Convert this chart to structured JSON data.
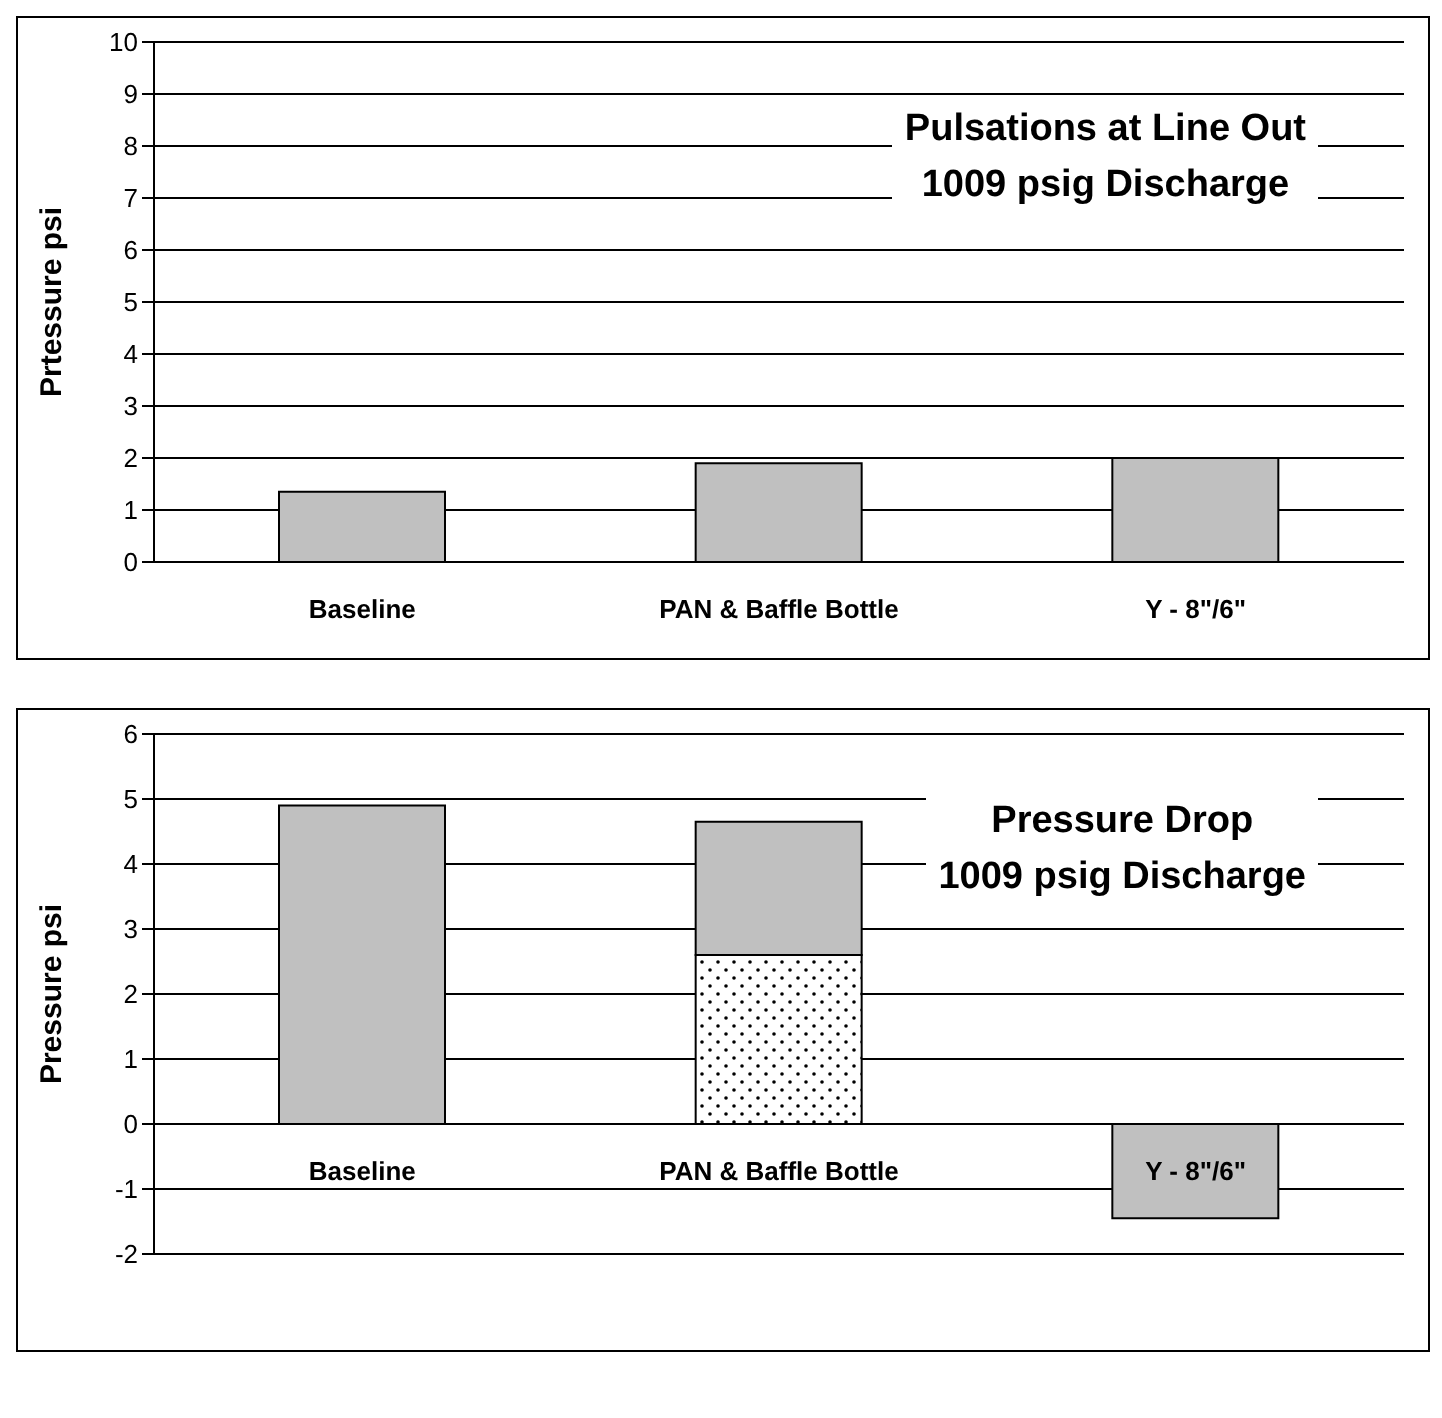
{
  "chart_data": [
    {
      "type": "bar",
      "title": "Pulsations at Line Out",
      "subtitle": "1009 psig Discharge",
      "ylabel": "Prtessure psi",
      "categories": [
        "Baseline",
        "PAN & Baffle Bottle",
        "Y - 8\"/6\""
      ],
      "values": [
        1.35,
        1.9,
        2.0
      ],
      "color": "#c0c0c0",
      "ylim": [
        0,
        10
      ],
      "yticks": [
        0,
        1,
        2,
        3,
        4,
        5,
        6,
        7,
        8,
        9,
        10
      ],
      "grid": "y"
    },
    {
      "type": "bar",
      "title": "Pressure Drop",
      "subtitle": "1009 psig Discharge",
      "ylabel": "Pressure psi",
      "categories": [
        "Baseline",
        "PAN & Baffle Bottle",
        "Y - 8\"/6\""
      ],
      "stacked": true,
      "series": [
        {
          "color": "#000000",
          "values": [
            null,
            2.6,
            null
          ]
        },
        {
          "color": "#c0c0c0",
          "values": [
            4.9,
            2.05,
            -1.45
          ]
        }
      ],
      "ylim": [
        -2,
        6
      ],
      "yticks": [
        -2,
        -1,
        0,
        1,
        2,
        3,
        4,
        5,
        6
      ],
      "grid": "y"
    }
  ]
}
